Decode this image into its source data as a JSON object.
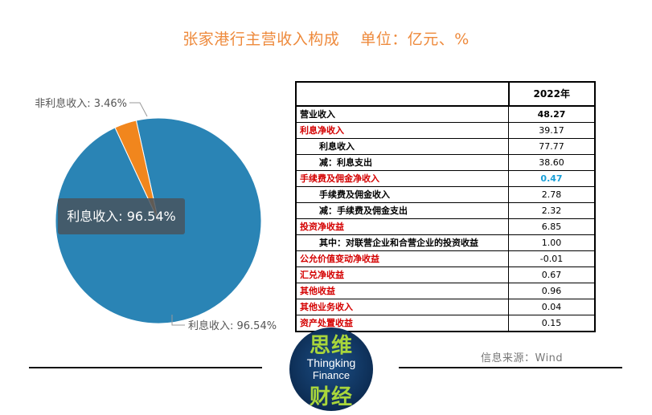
{
  "header": {
    "title": "张家港行主营收入构成",
    "unit": "单位：亿元、%"
  },
  "chart_data": {
    "type": "pie",
    "slices": [
      {
        "name": "利息收入",
        "value": 96.54,
        "label": "利息收入: 96.54%",
        "color": "#2a84b5"
      },
      {
        "name": "非利息收入",
        "value": 3.46,
        "label": "非利息收入: 3.46%",
        "color": "#f1861d"
      }
    ],
    "tooltip": "利息收入: 96.54%"
  },
  "table": {
    "column_header": "2022年",
    "rows": [
      {
        "label": "营业收入",
        "value": "48.27",
        "style": "strong"
      },
      {
        "label": "利息净收入",
        "value": "39.17",
        "style": "red"
      },
      {
        "label": "利息收入",
        "value": "77.77",
        "style": "sub"
      },
      {
        "label": "减：利息支出",
        "value": "38.60",
        "style": "sub"
      },
      {
        "label": "手续费及佣金净收入",
        "value": "0.47",
        "style": "red",
        "value_color": "blue"
      },
      {
        "label": "手续费及佣金收入",
        "value": "2.78",
        "style": "sub"
      },
      {
        "label": "减：手续费及佣金支出",
        "value": "2.32",
        "style": "sub"
      },
      {
        "label": "投资净收益",
        "value": "6.85",
        "style": "red"
      },
      {
        "label": "其中：对联营企业和合营企业的投资收益",
        "value": "1.00",
        "style": "sub"
      },
      {
        "label": "公允价值变动净收益",
        "value": "-0.01",
        "style": "red"
      },
      {
        "label": "汇兑净收益",
        "value": "0.67",
        "style": "red"
      },
      {
        "label": "其他收益",
        "value": "0.96",
        "style": "red"
      },
      {
        "label": "其他业务收入",
        "value": "0.04",
        "style": "red"
      },
      {
        "label": "资产处置收益",
        "value": "0.15",
        "style": "red"
      }
    ]
  },
  "logo": {
    "cn_top": "思维",
    "en_line1": "Thingking",
    "en_line2": "Finance",
    "cn_bottom": "财经"
  },
  "footer": {
    "source": "信息来源：Wind"
  }
}
